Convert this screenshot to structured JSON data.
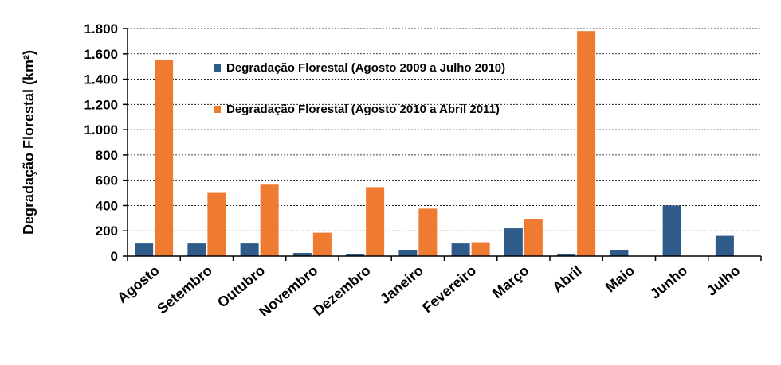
{
  "chart_data": {
    "type": "bar",
    "ylabel": "Degradação Florestal (km²)",
    "categories": [
      "Agosto",
      "Setembro",
      "Outubro",
      "Novembro",
      "Dezembro",
      "Janeiro",
      "Fevereiro",
      "Março",
      "Abril",
      "Maio",
      "Junho",
      "Julho"
    ],
    "series": [
      {
        "name": "Degradação Florestal (Agosto 2009 a Julho 2010)",
        "color": "#2e5b8a",
        "values": [
          100,
          100,
          100,
          25,
          15,
          50,
          100,
          220,
          15,
          45,
          400,
          160
        ]
      },
      {
        "name": "Degradação Florestal (Agosto 2010 a Abril 2011)",
        "color": "#ee7b30",
        "values": [
          1550,
          500,
          565,
          185,
          545,
          375,
          110,
          295,
          1780,
          null,
          null,
          null
        ]
      }
    ],
    "ylim": [
      0,
      1800
    ],
    "yticks": [
      0,
      200,
      400,
      600,
      800,
      1000,
      1200,
      1400,
      1600,
      1800
    ],
    "ytick_labels": [
      "0",
      "200",
      "400",
      "600",
      "800",
      "1.000",
      "1.200",
      "1.400",
      "1.600",
      "1.800"
    ],
    "grid": true,
    "legend_position": "upper-left-inside"
  }
}
